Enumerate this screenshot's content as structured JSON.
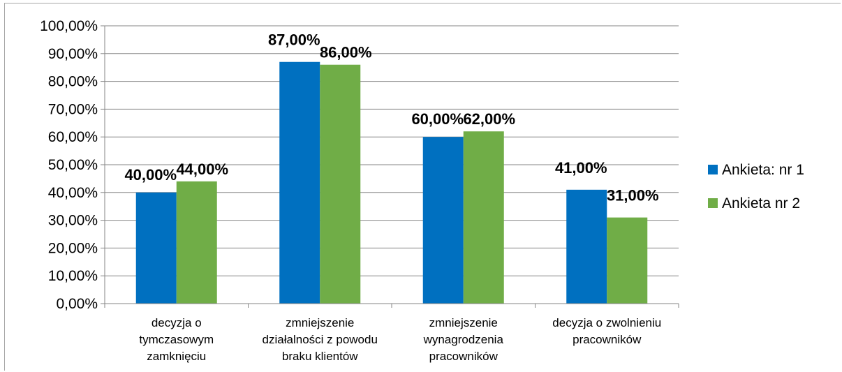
{
  "chart_data": {
    "type": "bar",
    "categories": [
      [
        "decyzja o",
        "tymczasowym",
        "zamknięciu"
      ],
      [
        "zmniejszenie",
        "działalności z powodu",
        "braku klientów"
      ],
      [
        "zmniejszenie",
        "wynagrodzenia",
        "pracowników"
      ],
      [
        "decyzja o zwolnieniu",
        "pracowników"
      ]
    ],
    "series": [
      {
        "name": "Ankieta: nr 1",
        "color": "#0070c0",
        "values": [
          40,
          87,
          60,
          41
        ],
        "labels": [
          "40,00%",
          "87,00%",
          "60,00%",
          "41,00%"
        ]
      },
      {
        "name": "Ankieta nr 2",
        "color": "#70ad47",
        "values": [
          44,
          86,
          62,
          31
        ],
        "labels": [
          "44,00%",
          "86,00%",
          "62,00%",
          "31,00%"
        ]
      }
    ],
    "ylim": [
      0,
      100
    ],
    "yticks": [
      "0,00%",
      "10,00%",
      "20,00%",
      "30,00%",
      "40,00%",
      "50,00%",
      "60,00%",
      "70,00%",
      "80,00%",
      "90,00%",
      "100,00%"
    ],
    "grid": true,
    "legend": "right"
  }
}
